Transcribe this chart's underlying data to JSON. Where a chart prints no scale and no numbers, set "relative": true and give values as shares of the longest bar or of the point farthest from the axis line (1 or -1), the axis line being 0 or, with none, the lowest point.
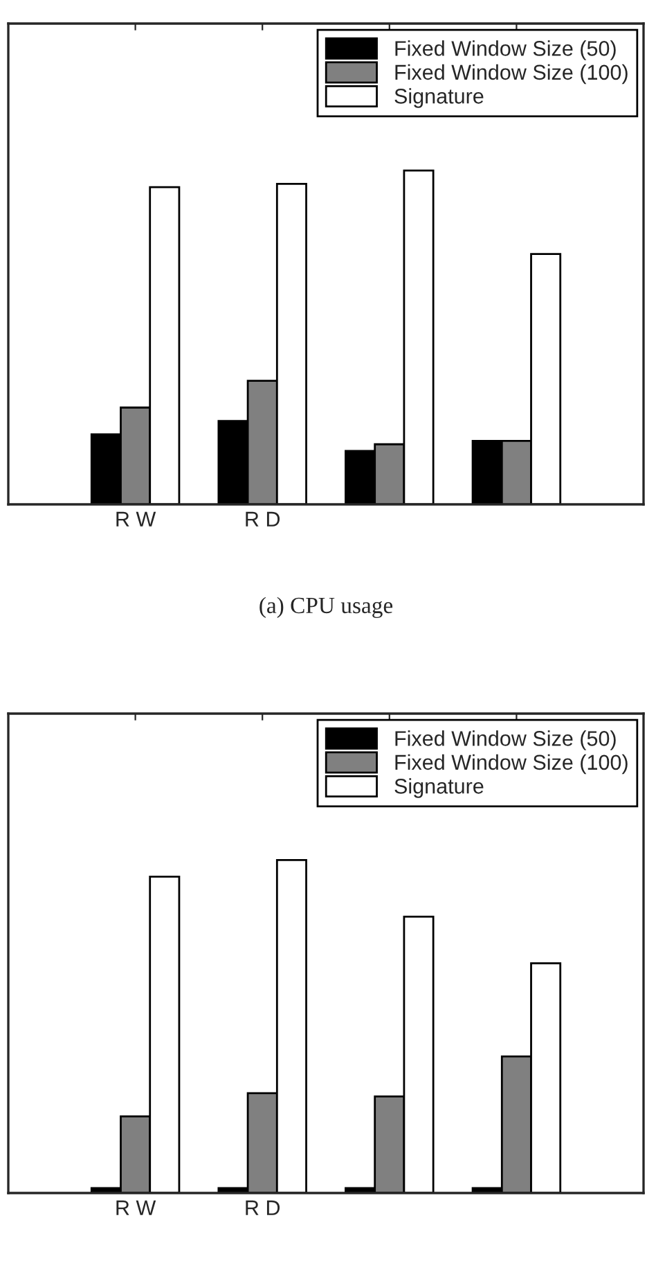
{
  "chart_data": [
    {
      "type": "bar",
      "title": "(a) CPU usage",
      "relative": true,
      "categories": [
        "R W",
        "R D",
        null,
        null
      ],
      "legend": "top right",
      "grid": false,
      "series": [
        {
          "name": "Fixed Window Size (50)",
          "color": "#000000",
          "values": [
            0.21,
            0.25,
            0.16,
            0.19
          ]
        },
        {
          "name": "Fixed Window Size (100)",
          "color": "#808080",
          "values": [
            0.29,
            0.37,
            0.18,
            0.19
          ]
        },
        {
          "name": "Signature",
          "color": "#ffffff",
          "values": [
            0.95,
            0.96,
            1.0,
            0.75
          ]
        }
      ]
    },
    {
      "type": "bar",
      "relative": true,
      "categories": [
        "R W",
        "R D",
        null,
        null
      ],
      "legend": "top right",
      "grid": false,
      "series": [
        {
          "name": "Fixed Window Size (50)",
          "color": "#000000",
          "values": [
            0.015,
            0.015,
            0.015,
            0.015
          ]
        },
        {
          "name": "Fixed Window Size (100)",
          "color": "#808080",
          "values": [
            0.23,
            0.3,
            0.29,
            0.41
          ]
        },
        {
          "name": "Signature",
          "color": "#ffffff",
          "values": [
            0.95,
            1.0,
            0.83,
            0.69
          ]
        }
      ]
    }
  ]
}
